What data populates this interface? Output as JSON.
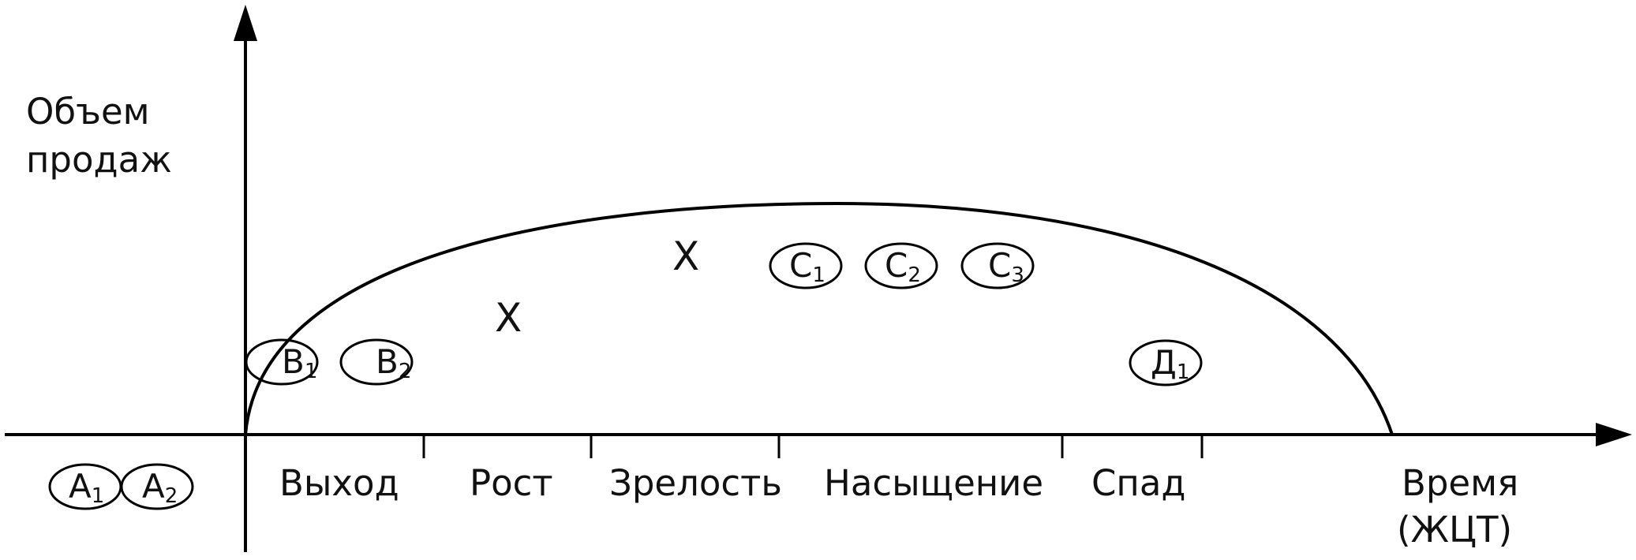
{
  "axes": {
    "y_label_line1": "Объем",
    "y_label_line2": "продаж",
    "x_label_line1": "Время",
    "x_label_line2": "(ЖЦТ)"
  },
  "stages": [
    "Выход",
    "Рост",
    "Зрелость",
    "Насыщение",
    "Спад"
  ],
  "markers": [
    "X",
    "X"
  ],
  "products": {
    "a1": {
      "letter": "A",
      "index": "1"
    },
    "a2": {
      "letter": "A",
      "index": "2"
    },
    "b1": {
      "letter": "B",
      "index": "1"
    },
    "b2": {
      "letter": "B",
      "index": "2"
    },
    "c1": {
      "letter": "C",
      "index": "1"
    },
    "c2": {
      "letter": "C",
      "index": "2"
    },
    "c3": {
      "letter": "C",
      "index": "3"
    },
    "d1": {
      "letter": "Д",
      "index": "1"
    }
  }
}
